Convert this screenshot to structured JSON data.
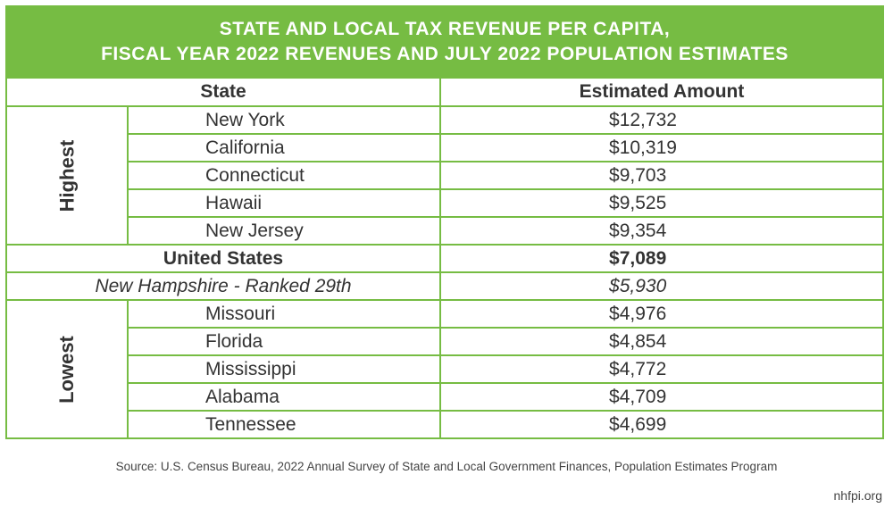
{
  "title": {
    "line1": "STATE AND LOCAL TAX REVENUE PER CAPITA,",
    "line2": "FISCAL YEAR 2022 REVENUES AND JULY 2022 POPULATION ESTIMATES"
  },
  "headers": {
    "state": "State",
    "amount": "Estimated Amount"
  },
  "highest": {
    "label": "Highest",
    "rows": [
      {
        "state": "New York",
        "amount": "$12,732"
      },
      {
        "state": "California",
        "amount": "$10,319"
      },
      {
        "state": "Connecticut",
        "amount": "$9,703"
      },
      {
        "state": "Hawaii",
        "amount": "$9,525"
      },
      {
        "state": "New Jersey",
        "amount": "$9,354"
      }
    ]
  },
  "us": {
    "state": "United States",
    "amount": "$7,089"
  },
  "nh": {
    "state": "New Hampshire - Ranked 29th",
    "amount": "$5,930"
  },
  "lowest": {
    "label": "Lowest",
    "rows": [
      {
        "state": "Missouri",
        "amount": "$4,976"
      },
      {
        "state": "Florida",
        "amount": "$4,854"
      },
      {
        "state": "Mississippi",
        "amount": "$4,772"
      },
      {
        "state": "Alabama",
        "amount": "$4,709"
      },
      {
        "state": "Tennessee",
        "amount": "$4,699"
      }
    ]
  },
  "source": "Source: U.S. Census Bureau, 2022 Annual Survey of State and Local Government Finances, Population Estimates Program",
  "site": "nhfpi.org",
  "colors": {
    "accent": "#76bc43"
  }
}
